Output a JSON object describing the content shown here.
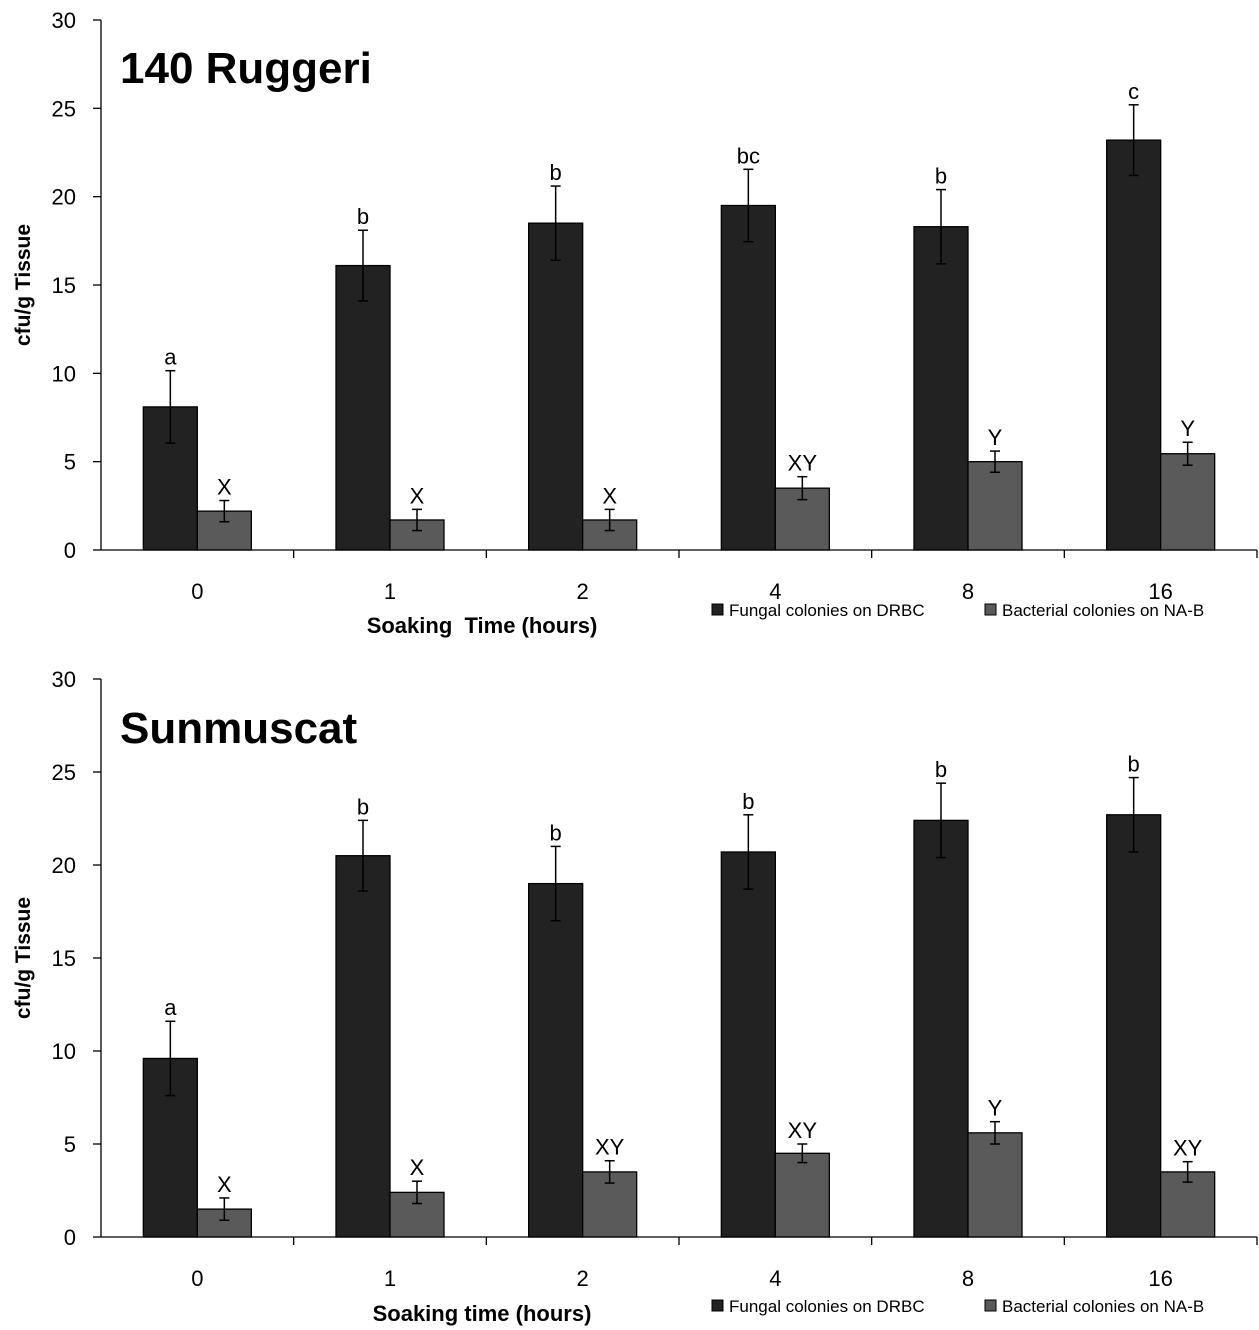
{
  "chart_data": [
    {
      "type": "bar",
      "title": "140 Ruggeri",
      "xlabel": "Soaking  Time (hours)",
      "ylabel": "cfu/g Tissue",
      "ylim": [
        0,
        30
      ],
      "yticks": [
        0,
        5,
        10,
        15,
        20,
        25,
        30
      ],
      "categories": [
        "0",
        "1",
        "2",
        "4",
        "8",
        "16"
      ],
      "legend_position": "bottom-right",
      "series": [
        {
          "name": "Fungal colonies on DRBC",
          "color": "#222222",
          "values": [
            8.1,
            16.1,
            18.5,
            19.5,
            18.3,
            23.2
          ],
          "errors": [
            2.05,
            2.0,
            2.1,
            2.05,
            2.1,
            2.0
          ],
          "letters": [
            "a",
            "b",
            "b",
            "bc",
            "b",
            "c"
          ]
        },
        {
          "name": "Bacterial colonies on NA-B",
          "color": "#5a5a5a",
          "values": [
            2.2,
            1.7,
            1.7,
            3.5,
            5.0,
            5.45
          ],
          "errors": [
            0.6,
            0.6,
            0.6,
            0.65,
            0.6,
            0.65
          ],
          "letters": [
            "X",
            "X",
            "X",
            "XY",
            "Y",
            "Y"
          ]
        }
      ]
    },
    {
      "type": "bar",
      "title": "Sunmuscat",
      "xlabel": "Soaking time (hours)",
      "ylabel": "cfu/g Tissue",
      "ylim": [
        0,
        30
      ],
      "yticks": [
        0,
        5,
        10,
        15,
        20,
        25,
        30
      ],
      "categories": [
        "0",
        "1",
        "2",
        "4",
        "8",
        "16"
      ],
      "legend_position": "bottom-right",
      "series": [
        {
          "name": "Fungal colonies on DRBC",
          "color": "#222222",
          "values": [
            9.6,
            20.5,
            19.0,
            20.7,
            22.4,
            22.7
          ],
          "errors": [
            2.0,
            1.9,
            2.0,
            2.0,
            2.0,
            2.0
          ],
          "letters": [
            "a",
            "b",
            "b",
            "b",
            "b",
            "b"
          ]
        },
        {
          "name": "Bacterial colonies on NA-B",
          "color": "#5a5a5a",
          "values": [
            1.5,
            2.4,
            3.5,
            4.5,
            5.6,
            3.5
          ],
          "errors": [
            0.6,
            0.6,
            0.6,
            0.5,
            0.6,
            0.55
          ],
          "letters": [
            "X",
            "X",
            "XY",
            "XY",
            "Y",
            "XY"
          ]
        }
      ]
    }
  ]
}
